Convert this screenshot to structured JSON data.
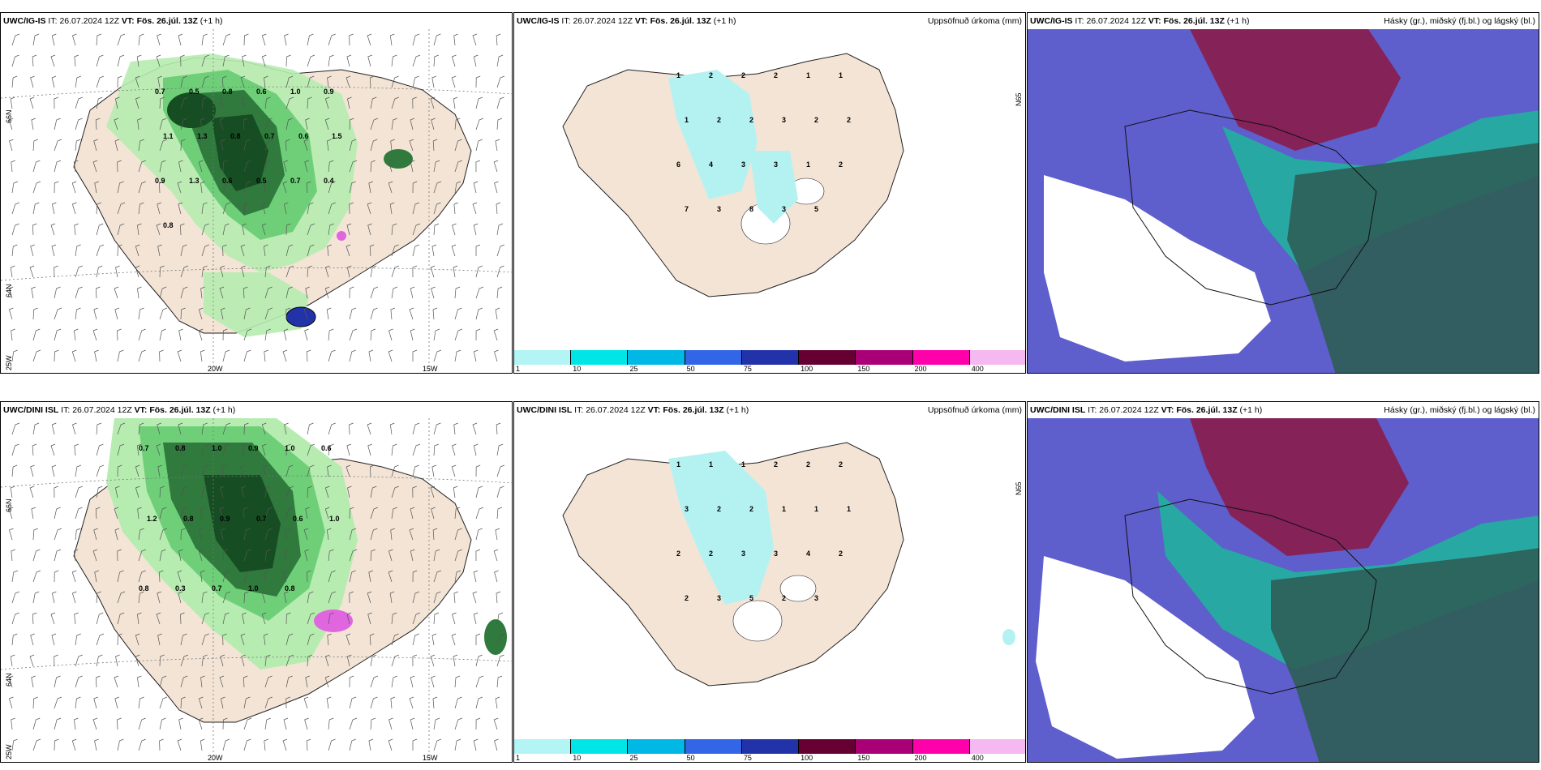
{
  "panels": [
    {
      "model": "UWC/IG-IS",
      "it_label": "IT:",
      "it": "26.07.2024 12Z",
      "vt_label": "VT:",
      "vt": "Fös. 26.júl. 13Z",
      "offset": "(+1 h)",
      "right_title": ""
    },
    {
      "model": "UWC/IG-IS",
      "it_label": "IT:",
      "it": "26.07.2024 12Z",
      "vt_label": "VT:",
      "vt": "Fös. 26.júl. 13Z",
      "offset": "(+1 h)",
      "right_title": "Uppsöfnuð úrkoma (mm)"
    },
    {
      "model": "UWC/IG-IS",
      "it_label": "IT:",
      "it": "26.07.2024 12Z",
      "vt_label": "VT:",
      "vt": "Fös. 26.júl. 13Z",
      "offset": "(+1 h)",
      "right_title": "Hásky (gr.), miðský (fj.bl.) og lágský (bl.)"
    },
    {
      "model": "UWC/DINI ISL",
      "it_label": "IT:",
      "it": "26.07.2024 12Z",
      "vt_label": "VT:",
      "vt": "Fös. 26.júl. 13Z",
      "offset": "(+1 h)",
      "right_title": ""
    },
    {
      "model": "UWC/DINI ISL",
      "it_label": "IT:",
      "it": "26.07.2024 12Z",
      "vt_label": "VT:",
      "vt": "Fös. 26.júl. 13Z",
      "offset": "(+1 h)",
      "right_title": "Uppsöfnuð úrkoma (mm)"
    },
    {
      "model": "UWC/DINI ISL",
      "it_label": "IT:",
      "it": "26.07.2024 12Z",
      "vt_label": "VT:",
      "vt": "Fös. 26.júl. 13Z",
      "offset": "(+1 h)",
      "right_title": "Hásky (gr.), miðský (fj.bl.) og lágský (bl.)"
    }
  ],
  "axis_labels": {
    "lat66": "66N",
    "lat64": "64N",
    "lat65": "N65",
    "lon20": "20W",
    "lon15": "15W",
    "lon25": "25W"
  },
  "colorbar": {
    "ticks": [
      "1",
      "10",
      "25",
      "50",
      "75",
      "100",
      "150",
      "200",
      "400"
    ],
    "colors": [
      "#b3f5f5",
      "#00e5e5",
      "#00b8e6",
      "#3366e6",
      "#2233aa",
      "#660033",
      "#aa0077",
      "#ff00aa",
      "#f5b8f0"
    ]
  },
  "colors": {
    "land": "#f3e4d6",
    "green_light": "#b6ecb0",
    "green_mid": "#6fcf79",
    "green_dark": "#2f7a3c",
    "green_darkest": "#174d22",
    "cyan": "#b4f2f2",
    "sky_blue": "#5e5ecc",
    "sky_maroon": "#8a1c4a",
    "sky_teal": "#1fb59a",
    "sky_dark": "#2e5e56"
  },
  "top_precip_values": [
    "0.7",
    "0.5",
    "0.8",
    "0.6",
    "1.0",
    "0.9",
    "1.1",
    "1.3",
    "0.8",
    "0.7",
    "0.6",
    "1.5",
    "0.9",
    "1.3",
    "0.6",
    "0.5",
    "0.7",
    "0.4",
    "0.8"
  ],
  "top_accum_values": [
    "1",
    "2",
    "2",
    "2",
    "1",
    "1",
    "1",
    "2",
    "2",
    "3",
    "2",
    "2",
    "6",
    "4",
    "3",
    "3",
    "1",
    "2",
    "7",
    "3",
    "8",
    "3",
    "5"
  ],
  "bottom_precip_values": [
    "0.7",
    "0.8",
    "1.0",
    "0.9",
    "1.0",
    "0.6",
    "1.2",
    "0.8",
    "0.9",
    "0.7",
    "0.6",
    "1.0",
    "0.8",
    "0.3",
    "0.7",
    "1.0",
    "0.8"
  ],
  "bottom_accum_values": [
    "1",
    "1",
    "1",
    "2",
    "2",
    "2",
    "3",
    "2",
    "2",
    "1",
    "1",
    "1",
    "2",
    "2",
    "3",
    "3",
    "4",
    "2",
    "2",
    "3",
    "5",
    "2",
    "3"
  ]
}
